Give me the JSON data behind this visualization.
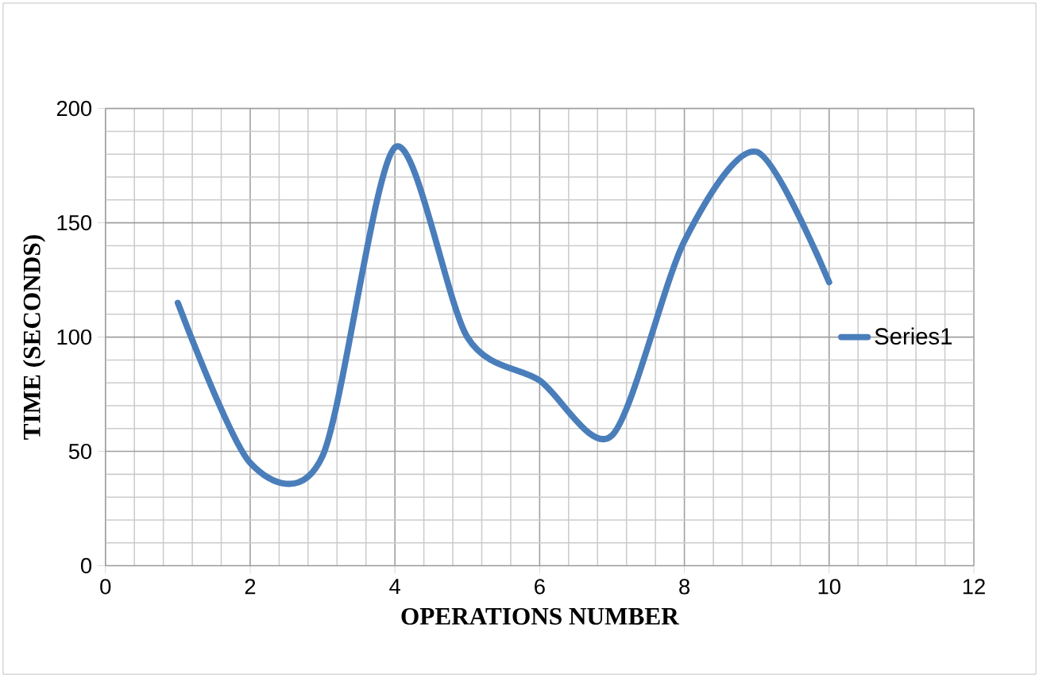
{
  "chart_data": {
    "type": "line",
    "xlabel": "OPERATIONS NUMBER",
    "ylabel": "TIME (SECONDS)",
    "x": [
      1,
      2,
      3,
      4,
      5,
      6,
      7,
      8,
      9,
      10
    ],
    "series": [
      {
        "name": "Series1",
        "color": "#4a7ebb",
        "values": [
          115,
          45,
          48,
          183,
          100,
          81,
          57,
          142,
          181,
          124
        ]
      }
    ],
    "xlim": [
      0,
      12
    ],
    "xticks": [
      0,
      2,
      4,
      6,
      8,
      10,
      12
    ],
    "ylim": [
      0,
      200
    ],
    "yticks": [
      0,
      50,
      100,
      150,
      200
    ],
    "grid": true,
    "legend": "right",
    "marker": "none",
    "line_style": "solid"
  }
}
